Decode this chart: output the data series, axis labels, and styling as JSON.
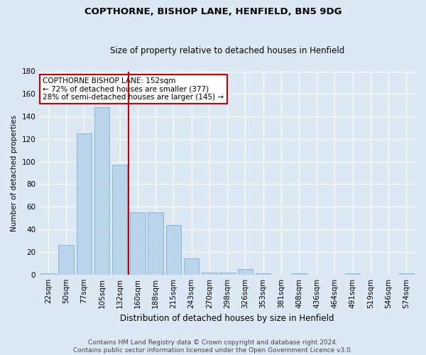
{
  "title1": "COPTHORNE, BISHOP LANE, HENFIELD, BN5 9DG",
  "title2": "Size of property relative to detached houses in Henfield",
  "xlabel": "Distribution of detached houses by size in Henfield",
  "ylabel": "Number of detached properties",
  "bar_labels": [
    "22sqm",
    "50sqm",
    "77sqm",
    "105sqm",
    "132sqm",
    "160sqm",
    "188sqm",
    "215sqm",
    "243sqm",
    "270sqm",
    "298sqm",
    "326sqm",
    "353sqm",
    "381sqm",
    "408sqm",
    "436sqm",
    "464sqm",
    "491sqm",
    "519sqm",
    "546sqm",
    "574sqm"
  ],
  "bar_values": [
    1,
    26,
    125,
    148,
    97,
    55,
    55,
    44,
    14,
    2,
    2,
    5,
    1,
    0,
    1,
    0,
    0,
    1,
    0,
    0,
    1
  ],
  "bar_color": "#bad4ea",
  "bar_edge_color": "#7aafd4",
  "vline_color": "#cc0000",
  "annotation_text": "COPTHORNE BISHOP LANE: 152sqm\n← 72% of detached houses are smaller (377)\n28% of semi-detached houses are larger (145) →",
  "annotation_box_color": "#ffffff",
  "annotation_box_edge": "#cc0000",
  "bg_color": "#dce9f5",
  "plot_bg_color": "#dce9f5",
  "footer": "Contains HM Land Registry data © Crown copyright and database right 2024.\nContains public sector information licensed under the Open Government Licence v3.0.",
  "ylim": [
    0,
    180
  ],
  "yticks": [
    0,
    20,
    40,
    60,
    80,
    100,
    120,
    140,
    160,
    180
  ],
  "title1_fontsize": 9.5,
  "title2_fontsize": 8.5,
  "xlabel_fontsize": 8.5,
  "ylabel_fontsize": 7.5,
  "tick_fontsize": 7.5,
  "annot_fontsize": 7.5,
  "footer_fontsize": 6.5,
  "vline_x_pos": 4.5
}
